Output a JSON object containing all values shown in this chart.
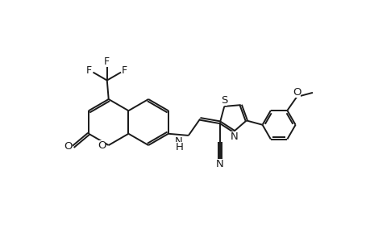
{
  "background_color": "#ffffff",
  "line_color": "#1a1a1a",
  "line_width": 1.4,
  "figsize": [
    4.6,
    3.0
  ],
  "dpi": 100,
  "xlim": [
    -4.8,
    4.2
  ],
  "ylim": [
    -2.5,
    2.5
  ]
}
